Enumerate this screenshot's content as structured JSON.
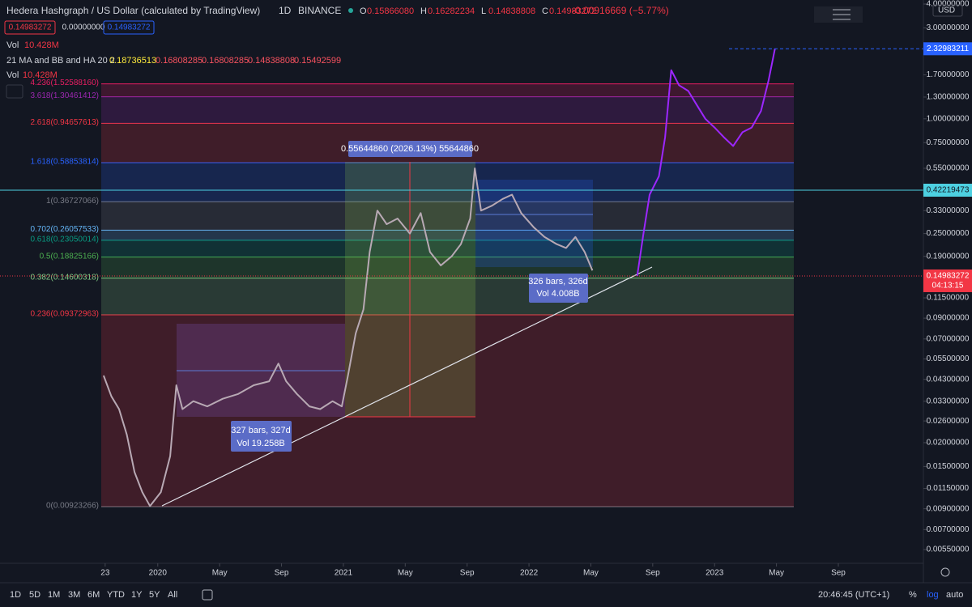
{
  "header": {
    "symbol": "Hedera Hashgraph / US Dollar (calculated by TradingView)",
    "interval": "1D",
    "exchange": "BINANCE",
    "ohlc": [
      "O",
      "0.15866080",
      "H",
      "0.16282234",
      "L",
      "0.14838808",
      "C",
      "0.14983272"
    ],
    "change": "-0.00916669 (−5.77%)"
  },
  "price_boxes": [
    "0.14983272",
    "0.00000000",
    "0.14983272"
  ],
  "volume_legend": {
    "label": "Vol",
    "value": "10.428M"
  },
  "indicator": {
    "name": "21 MA and BB and HA 20 2",
    "values": [
      "0.18736513",
      "0.16808285",
      "0.16808285",
      "0.14838808",
      "0.15492599"
    ]
  },
  "volume_legend_2": {
    "label": "Vol",
    "value": "10.428M"
  },
  "chart_data": {
    "type": "line",
    "log_scale": true,
    "currency": "USD",
    "ylim": [
      0.0055,
      4
    ],
    "yticks": [
      {
        "value": 4,
        "label": "4.00000000"
      },
      {
        "value": 3,
        "label": "3.00000000"
      },
      {
        "value": 1.7,
        "label": "1.70000000"
      },
      {
        "value": 1.3,
        "label": "1.30000000"
      },
      {
        "value": 1,
        "label": "1.00000000"
      },
      {
        "value": 0.75,
        "label": "0.75000000"
      },
      {
        "value": 0.55,
        "label": "0.55000000"
      },
      {
        "value": 0.33,
        "label": "0.33000000"
      },
      {
        "value": 0.25,
        "label": "0.25000000"
      },
      {
        "value": 0.19,
        "label": "0.19000000"
      },
      {
        "value": 0.115,
        "label": "0.11500000"
      },
      {
        "value": 0.09,
        "label": "0.09000000"
      },
      {
        "value": 0.07,
        "label": "0.07000000"
      },
      {
        "value": 0.055,
        "label": "0.05500000"
      },
      {
        "value": 0.043,
        "label": "0.04300000"
      },
      {
        "value": 0.033,
        "label": "0.03300000"
      },
      {
        "value": 0.026,
        "label": "0.02600000"
      },
      {
        "value": 0.02,
        "label": "0.02000000"
      },
      {
        "value": 0.015,
        "label": "0.01500000"
      },
      {
        "value": 0.0115,
        "label": "0.01150000"
      },
      {
        "value": 0.009,
        "label": "0.00900000"
      },
      {
        "value": 0.007,
        "label": "0.00700000"
      },
      {
        "value": 0.0055,
        "label": "0.00550000"
      }
    ],
    "xlim": [
      -10.2,
      49.5
    ],
    "xticks": [
      {
        "value": -3.4,
        "label": "23"
      },
      {
        "value": 0,
        "label": "2020"
      },
      {
        "value": 4,
        "label": "May"
      },
      {
        "value": 8,
        "label": "Sep"
      },
      {
        "value": 12,
        "label": "2021"
      },
      {
        "value": 16,
        "label": "May"
      },
      {
        "value": 20,
        "label": "Sep"
      },
      {
        "value": 24,
        "label": "2022"
      },
      {
        "value": 28,
        "label": "May"
      },
      {
        "value": 32,
        "label": "Sep"
      },
      {
        "value": 36,
        "label": "2023"
      },
      {
        "value": 40,
        "label": "May"
      },
      {
        "value": 44,
        "label": "Sep"
      }
    ],
    "series": [
      {
        "color": "#b8a9b4",
        "x": [
          -3.5,
          -3,
          -2.5,
          -2,
          -1.5,
          -1,
          -0.5,
          0.2,
          0.8,
          1.2,
          1.6,
          2.3,
          3.2,
          4.2,
          5.2,
          6.2,
          7.2,
          7.8,
          8.3,
          9,
          9.8,
          10.5,
          11.3,
          11.9,
          12.3,
          12.8,
          13.3,
          13.7,
          14.2,
          14.8,
          15.5,
          16.3,
          17,
          17.6,
          18.3,
          19,
          19.6,
          20.2,
          20.5,
          20.9,
          21.6,
          22.3,
          22.9,
          23.5,
          24.3,
          25,
          25.8,
          26.4,
          27,
          27.6,
          28.1
        ],
        "values": [
          0.045,
          0.035,
          0.03,
          0.022,
          0.014,
          0.011,
          0.0093,
          0.011,
          0.017,
          0.04,
          0.03,
          0.033,
          0.031,
          0.034,
          0.036,
          0.04,
          0.042,
          0.052,
          0.042,
          0.036,
          0.031,
          0.03,
          0.033,
          0.031,
          0.045,
          0.075,
          0.1,
          0.2,
          0.33,
          0.28,
          0.3,
          0.25,
          0.32,
          0.2,
          0.17,
          0.19,
          0.22,
          0.3,
          0.55,
          0.33,
          0.35,
          0.38,
          0.4,
          0.32,
          0.27,
          0.24,
          0.22,
          0.21,
          0.24,
          0.2,
          0.16
        ]
      },
      {
        "color": "#9c27ff",
        "x": [
          31,
          31.4,
          31.8,
          32.4,
          32.8,
          33.2,
          33.7,
          34.3,
          34.8,
          35.4,
          36,
          36.6,
          37.2,
          37.8,
          38.4,
          39,
          39.5,
          39.9
        ],
        "values": [
          0.15,
          0.25,
          0.4,
          0.5,
          0.8,
          1.8,
          1.5,
          1.4,
          1.2,
          1,
          0.9,
          0.8,
          0.72,
          0.85,
          0.9,
          1.1,
          1.6,
          2.33
        ]
      }
    ],
    "fib_levels": [
      {
        "value": 0.00923266,
        "label": "0(0.00923266)",
        "color": "#787b86"
      },
      {
        "value": 0.09372963,
        "label": "0.236(0.09372963)",
        "color": "#f23645"
      },
      {
        "value": 0.14600318,
        "label": "0.382(0.14600318)",
        "color": "#81c784"
      },
      {
        "value": 0.18825166,
        "label": "0.5(0.18825166)",
        "color": "#4caf50"
      },
      {
        "value": 0.23050014,
        "label": "0.618(0.23050014)",
        "color": "#089981"
      },
      {
        "value": 0.26057533,
        "label": "0.702(0.26057533)",
        "color": "#64b5f6"
      },
      {
        "value": 0.36727066,
        "label": "1(0.36727066)",
        "color": "#787b86"
      },
      {
        "value": 0.58853814,
        "label": "1.618(0.58853814)",
        "color": "#2962ff"
      },
      {
        "value": 0.94657613,
        "label": "2.618(0.94657613)",
        "color": "#f23645"
      },
      {
        "value": 1.30461412,
        "label": "3.618(1.30461412)",
        "color": "#9c27b0"
      },
      {
        "value": 1.5258816,
        "label": "4.236(1.52588160)",
        "color": "#e91e63"
      }
    ],
    "price_markers": [
      {
        "value": 2.32983211,
        "label": "2.32983211",
        "color": "#2962ff"
      },
      {
        "value": 0.42219473,
        "label": "0.42219473",
        "color": "#4dd0e1"
      }
    ],
    "current_price": {
      "value": 0.14983272,
      "label": "0.14983272",
      "countdown": "04:13:15",
      "color": "#f23645"
    },
    "annotations": {
      "measure_top": "0.55644860 (2026.13%) 55644860",
      "range_1": [
        "327 bars, 327d",
        "Vol 19.258B"
      ],
      "range_2": [
        "326 bars, 326d",
        "Vol 4.008B"
      ]
    }
  },
  "toolbar": {
    "ranges": [
      "1D",
      "5D",
      "1M",
      "3M",
      "6M",
      "YTD",
      "1Y",
      "5Y",
      "All"
    ],
    "clock": "20:46:45 (UTC+1)",
    "options": [
      "%",
      "log",
      "auto"
    ]
  }
}
